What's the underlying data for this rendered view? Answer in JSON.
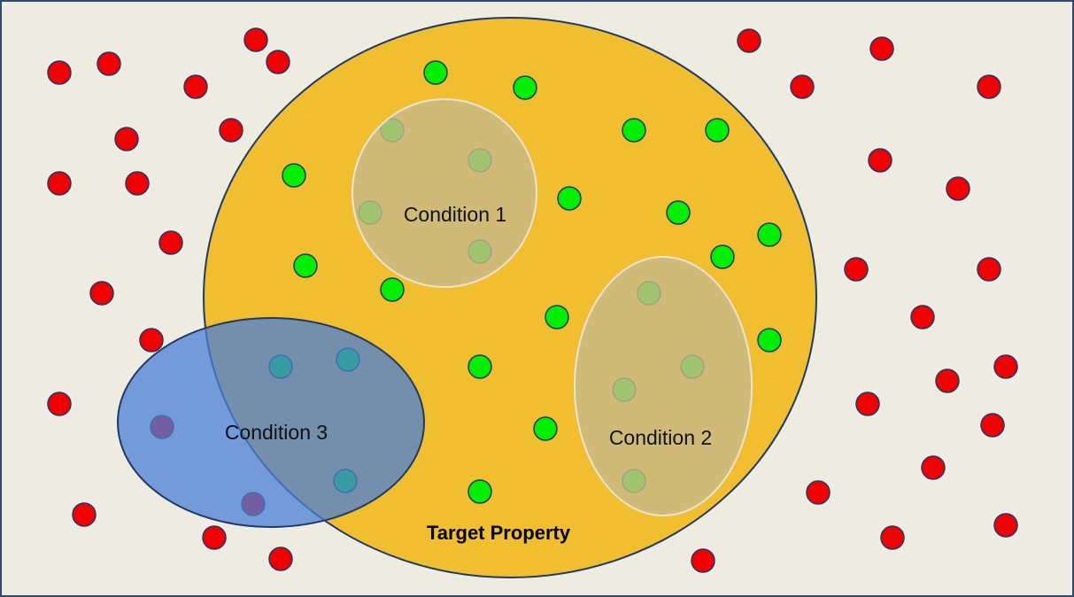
{
  "colors": {
    "background": "#eeebe1",
    "frame": "#2e4a72",
    "target_fill": "#f0be2e",
    "target_stroke": "#1f3a66",
    "condition_fill": "#c8b98a",
    "condition_stroke": "#e8e4d6",
    "condition3_fill": "#4a7fd6",
    "outside_dot": "#f00000",
    "inside_dot": "#00ee00",
    "dot_stroke": "#1f3a66"
  },
  "labels": {
    "target_property": "Target Property",
    "condition_1": "Condition 1",
    "condition_2": "Condition 2",
    "condition_3": "Condition 3"
  }
}
